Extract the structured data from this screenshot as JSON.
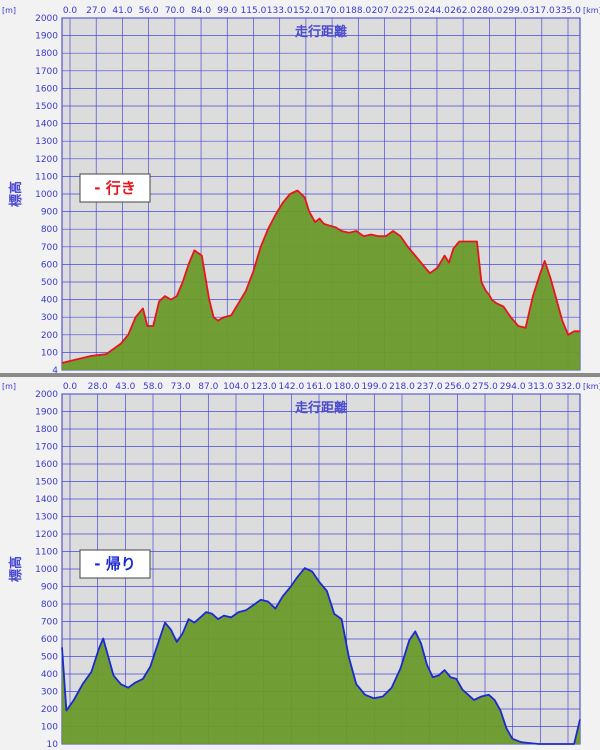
{
  "chart_data": [
    {
      "type": "area",
      "xlabel": "走行距離",
      "ylabel": "標高",
      "unit_y": "[m]",
      "unit_x": "[km]",
      "tag": "- 行き",
      "tag_color": "#e8141e",
      "line_color": "#e8141e",
      "fill_color": "#6a9a2a",
      "ylim": [
        0,
        2000
      ],
      "xlim": [
        0,
        352
      ],
      "x_ticks": [
        "0.0",
        "27.0",
        "41.0",
        "56.0",
        "70.0",
        "84.0",
        "99.0",
        "115.0",
        "133.0",
        "152.0",
        "170.0",
        "188.0",
        "207.0",
        "225.0",
        "244.0",
        "262.0",
        "280.0",
        "299.0",
        "317.0",
        "335.0"
      ],
      "y_ticks": [
        "4",
        "100",
        "200",
        "300",
        "400",
        "500",
        "600",
        "700",
        "800",
        "900",
        "1000",
        "1100",
        "1200",
        "1300",
        "1400",
        "1500",
        "1600",
        "1700",
        "1800",
        "1900",
        "2000"
      ],
      "x": [
        0,
        10,
        20,
        30,
        40,
        45,
        50,
        55,
        58,
        62,
        66,
        70,
        74,
        78,
        82,
        86,
        90,
        95,
        98,
        100,
        103,
        106,
        110,
        115,
        120,
        125,
        130,
        135,
        140,
        145,
        150,
        155,
        160,
        165,
        168,
        172,
        175,
        178,
        182,
        186,
        190,
        195,
        200,
        205,
        210,
        215,
        220,
        225,
        230,
        235,
        240,
        245,
        250,
        255,
        260,
        263,
        266,
        270,
        274,
        278,
        282,
        285,
        288,
        290,
        292,
        295,
        300,
        305,
        310,
        315,
        320,
        325,
        328,
        332,
        336,
        340,
        344,
        348,
        352
      ],
      "values": [
        40,
        60,
        80,
        90,
        150,
        200,
        300,
        350,
        250,
        250,
        390,
        420,
        400,
        420,
        500,
        600,
        680,
        650,
        500,
        400,
        300,
        280,
        300,
        310,
        380,
        450,
        560,
        700,
        800,
        880,
        950,
        1000,
        1020,
        980,
        900,
        840,
        860,
        830,
        820,
        810,
        790,
        780,
        790,
        760,
        770,
        760,
        760,
        790,
        760,
        700,
        650,
        600,
        550,
        580,
        650,
        610,
        690,
        730,
        730,
        730,
        730,
        500,
        450,
        430,
        400,
        380,
        360,
        300,
        250,
        240,
        420,
        550,
        620,
        520,
        400,
        280,
        200,
        220,
        220
      ]
    },
    {
      "type": "area",
      "xlabel": "走行距離",
      "ylabel": "標高",
      "unit_y": "[m]",
      "unit_x": "[km]",
      "tag": "- 帰り",
      "tag_color": "#1a2ad0",
      "line_color": "#1a2ad0",
      "fill_color": "#6a9a2a",
      "ylim": [
        10,
        2000
      ],
      "xlim": [
        0,
        352
      ],
      "x_ticks": [
        "0.0",
        "28.0",
        "43.0",
        "58.0",
        "73.0",
        "87.0",
        "104.0",
        "123.0",
        "142.0",
        "161.0",
        "180.0",
        "199.0",
        "218.0",
        "237.0",
        "256.0",
        "275.0",
        "294.0",
        "313.0",
        "332.0"
      ],
      "y_ticks": [
        "10",
        "100",
        "200",
        "300",
        "400",
        "500",
        "600",
        "700",
        "800",
        "900",
        "1000",
        "1100",
        "1200",
        "1300",
        "1400",
        "1500",
        "1600",
        "1700",
        "1800",
        "1900",
        "2000"
      ],
      "x": [
        0,
        3,
        8,
        14,
        20,
        25,
        28,
        31,
        35,
        40,
        45,
        50,
        55,
        60,
        66,
        70,
        74,
        78,
        82,
        86,
        90,
        94,
        98,
        102,
        106,
        110,
        115,
        120,
        125,
        130,
        135,
        140,
        145,
        150,
        155,
        160,
        165,
        170,
        175,
        180,
        185,
        190,
        195,
        200,
        206,
        212,
        218,
        224,
        230,
        236,
        240,
        244,
        248,
        252,
        256,
        260,
        264,
        268,
        272,
        276,
        280,
        285,
        290,
        294,
        298,
        302,
        306,
        312,
        318,
        324,
        330,
        336,
        342,
        348,
        352
      ],
      "values": [
        560,
        200,
        260,
        350,
        420,
        550,
        610,
        520,
        400,
        350,
        330,
        360,
        380,
        450,
        600,
        700,
        660,
        590,
        640,
        720,
        700,
        730,
        760,
        750,
        720,
        740,
        730,
        760,
        770,
        800,
        830,
        820,
        780,
        850,
        900,
        960,
        1010,
        990,
        930,
        880,
        750,
        720,
        500,
        350,
        290,
        270,
        280,
        330,
        440,
        600,
        650,
        580,
        460,
        390,
        400,
        430,
        390,
        380,
        320,
        290,
        260,
        280,
        290,
        260,
        200,
        100,
        40,
        20,
        15,
        10,
        10,
        10,
        10,
        10,
        150
      ]
    }
  ]
}
